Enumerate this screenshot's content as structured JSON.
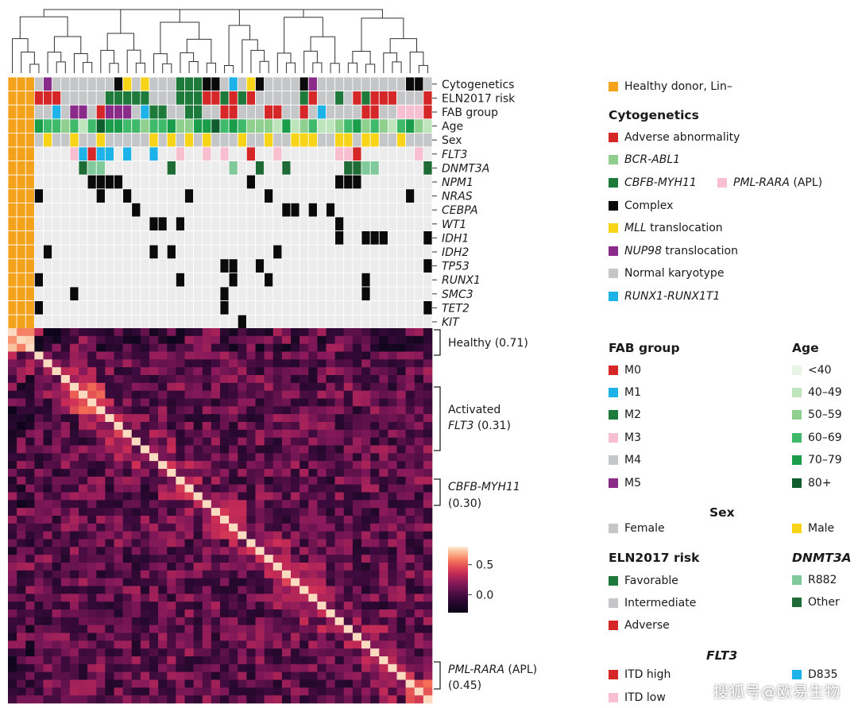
{
  "chart_data": {
    "type": "heatmap",
    "annotation_rows": [
      "Cytogenetics",
      "ELN2017 risk",
      "FAB group",
      "Age",
      "Sex"
    ],
    "mutation_rows": [
      "FLT3",
      "DNMT3A",
      "NPM1",
      "NRAS",
      "CEBPA",
      "WT1",
      "IDH1",
      "IDH2",
      "TP53",
      "RUNX1",
      "SMC3",
      "TET2",
      "KIT"
    ],
    "clusters": [
      {
        "label": "Healthy",
        "value": "(0.71)"
      },
      {
        "label": "Activated",
        "label2": "FLT3",
        "value": "(0.31)"
      },
      {
        "label": "CBFB-MYH11",
        "value": "(0.30)"
      },
      {
        "label": "PML-RARA",
        "label_extra": "(APL)",
        "value": "(0.45)"
      }
    ],
    "colorbar": {
      "ticks": [
        "0.5",
        "0.0"
      ],
      "range": [
        -0.3,
        0.8
      ]
    },
    "legend": {
      "healthy": {
        "label": "Healthy donor, Lin–",
        "color": "#f4a21b"
      },
      "cytogenetics": {
        "title": "Cytogenetics",
        "items": [
          {
            "label": "Adverse abnormality",
            "color": "#d62728",
            "italic": false
          },
          {
            "label": "BCR-ABL1",
            "color": "#8fce8c",
            "italic": true
          },
          {
            "label": "CBFB-MYH11",
            "color": "#1e7a3a",
            "italic": true
          },
          {
            "label": "Complex",
            "color": "#0a0a0a",
            "italic": false
          },
          {
            "label": "MLL",
            "suffix": " translocation",
            "color": "#f7d417",
            "italic": true
          },
          {
            "label": "NUP98",
            "suffix": " translocation",
            "color": "#8a2b8a",
            "italic": true
          },
          {
            "label": "Normal karyotype",
            "color": "#c5c6c8",
            "italic": false
          },
          {
            "label": "RUNX1-RUNX1T1",
            "color": "#1db2e8",
            "italic": true
          }
        ],
        "extra": {
          "label": "PML-RARA",
          "suffix": " (APL)",
          "color": "#f7bfd0"
        }
      },
      "fab": {
        "title": "FAB group",
        "items": [
          {
            "label": "M0",
            "color": "#d62728"
          },
          {
            "label": "M1",
            "color": "#1db2e8"
          },
          {
            "label": "M2",
            "color": "#1e7a3a"
          },
          {
            "label": "M3",
            "color": "#f7bfd0"
          },
          {
            "label": "M4",
            "color": "#c5c6c8"
          },
          {
            "label": "M5",
            "color": "#8a2b8a"
          }
        ]
      },
      "age": {
        "title": "Age",
        "items": [
          {
            "label": "<40",
            "color": "#e8f5e6"
          },
          {
            "label": "40–49",
            "color": "#bfe5bc"
          },
          {
            "label": "50–59",
            "color": "#8fd08e"
          },
          {
            "label": "60–69",
            "color": "#3fb96a"
          },
          {
            "label": "70–79",
            "color": "#1a9d4b"
          },
          {
            "label": "80+",
            "color": "#0f5c2c"
          }
        ]
      },
      "sex": {
        "title": "Sex",
        "items": [
          {
            "label": "Female",
            "color": "#c5c6c8"
          },
          {
            "label": "Male",
            "color": "#f7d417"
          }
        ]
      },
      "eln": {
        "title": "ELN2017 risk",
        "items": [
          {
            "label": "Favorable",
            "color": "#1e7a3a"
          },
          {
            "label": "Intermediate",
            "color": "#c5c6c8"
          },
          {
            "label": "Adverse",
            "color": "#d62728"
          }
        ]
      },
      "dnmt3a": {
        "title": "DNMT3A",
        "items": [
          {
            "label": "R882",
            "color": "#7fc99a"
          },
          {
            "label": "Other",
            "color": "#1e6b35"
          }
        ]
      },
      "flt3": {
        "title": "FLT3",
        "items": [
          {
            "label": "ITD high",
            "color": "#d62728"
          },
          {
            "label": "ITD low",
            "color": "#f7bfd0"
          },
          {
            "label": "D835",
            "color": "#1db2e8"
          }
        ]
      }
    }
  },
  "watermark": "搜狐号@欧易生物"
}
